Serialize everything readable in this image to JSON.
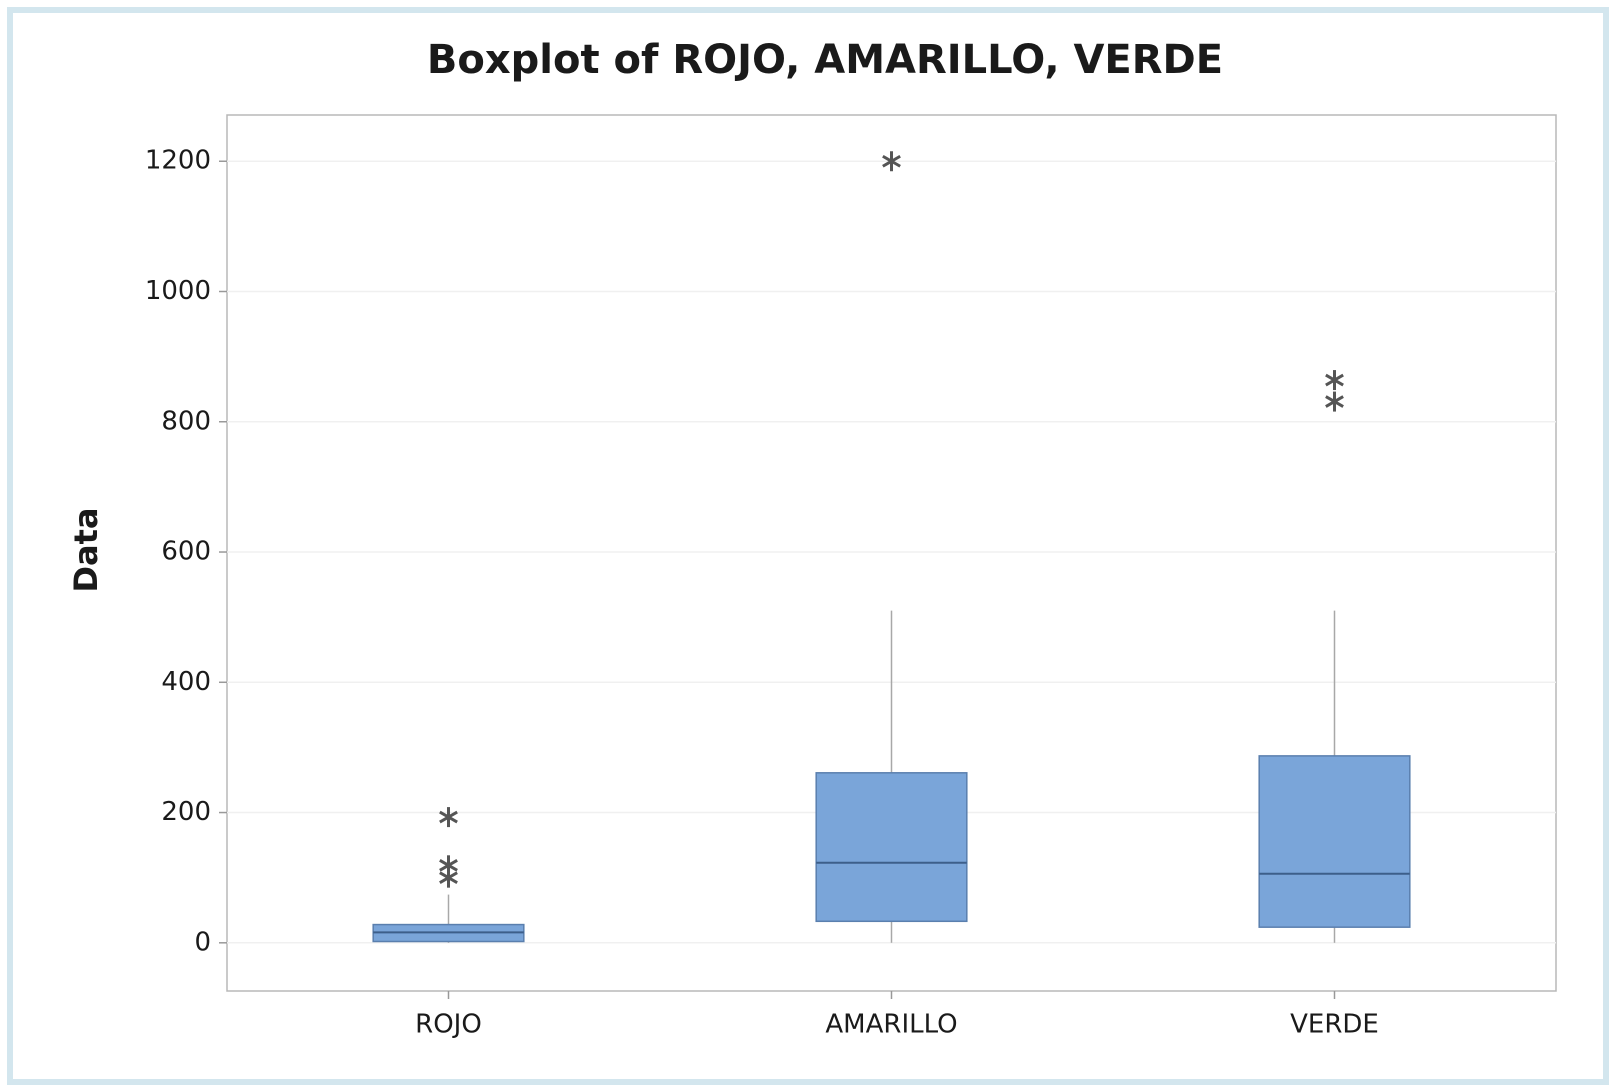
{
  "chart_data": {
    "type": "box",
    "title": "Boxplot of ROJO, AMARILLO, VERDE",
    "ylabel": "Data",
    "categories": [
      "ROJO",
      "AMARILLO",
      "VERDE"
    ],
    "color": "#7aa5d9",
    "boxes": [
      {
        "whisker_low": 0,
        "q1": 2,
        "median": 16,
        "q3": 28,
        "whisker_high": 74,
        "outliers": [
          193,
          119,
          100
        ]
      },
      {
        "whisker_low": 0,
        "q1": 33,
        "median": 123,
        "q3": 261,
        "whisker_high": 510,
        "outliers": [
          1200
        ]
      },
      {
        "whisker_low": 0,
        "q1": 24,
        "median": 106,
        "q3": 287,
        "whisker_high": 510,
        "outliers": [
          864,
          831
        ]
      }
    ],
    "ylim": [
      -74,
      1271
    ],
    "yticks": [
      0,
      200,
      400,
      600,
      800,
      1000,
      1200
    ],
    "grid": true
  }
}
